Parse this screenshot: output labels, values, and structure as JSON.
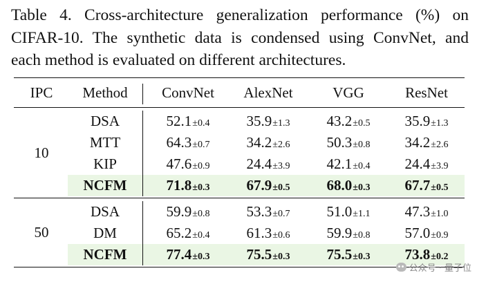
{
  "caption": {
    "lines": [
      "Table 4.  Cross-architecture generalization performance (%) on",
      "CIFAR-10.  The synthetic data is condensed using ConvNet, and",
      "each method is evaluated on different architectures."
    ]
  },
  "table": {
    "headers": [
      "IPC",
      "Method",
      "ConvNet",
      "AlexNet",
      "VGG",
      "ResNet"
    ],
    "groups": [
      {
        "ipc": "10",
        "rows": [
          {
            "method": "DSA",
            "highlight": false,
            "cells": [
              {
                "v": "52.1",
                "pm": "±0.4"
              },
              {
                "v": "35.9",
                "pm": "±1.3"
              },
              {
                "v": "43.2",
                "pm": "±0.5"
              },
              {
                "v": "35.9",
                "pm": "±1.3"
              }
            ]
          },
          {
            "method": "MTT",
            "highlight": false,
            "cells": [
              {
                "v": "64.3",
                "pm": "±0.7"
              },
              {
                "v": "34.2",
                "pm": "±2.6"
              },
              {
                "v": "50.3",
                "pm": "±0.8"
              },
              {
                "v": "34.2",
                "pm": "±2.6"
              }
            ]
          },
          {
            "method": "KIP",
            "highlight": false,
            "cells": [
              {
                "v": "47.6",
                "pm": "±0.9"
              },
              {
                "v": "24.4",
                "pm": "±3.9"
              },
              {
                "v": "42.1",
                "pm": "±0.4"
              },
              {
                "v": "24.4",
                "pm": "±3.9"
              }
            ]
          },
          {
            "method": "NCFM",
            "highlight": true,
            "cells": [
              {
                "v": "71.8",
                "pm": "±0.3"
              },
              {
                "v": "67.9",
                "pm": "±0.5"
              },
              {
                "v": "68.0",
                "pm": "±0.3"
              },
              {
                "v": "67.7",
                "pm": "±0.5"
              }
            ]
          }
        ]
      },
      {
        "ipc": "50",
        "rows": [
          {
            "method": "DSA",
            "highlight": false,
            "cells": [
              {
                "v": "59.9",
                "pm": "±0.8"
              },
              {
                "v": "53.3",
                "pm": "±0.7"
              },
              {
                "v": "51.0",
                "pm": "±1.1"
              },
              {
                "v": "47.3",
                "pm": "±1.0"
              }
            ]
          },
          {
            "method": "DM",
            "highlight": false,
            "cells": [
              {
                "v": "65.2",
                "pm": "±0.4"
              },
              {
                "v": "61.3",
                "pm": "±0.6"
              },
              {
                "v": "59.9",
                "pm": "±0.8"
              },
              {
                "v": "57.0",
                "pm": "±0.9"
              }
            ]
          },
          {
            "method": "NCFM",
            "highlight": true,
            "cells": [
              {
                "v": "77.4",
                "pm": "±0.3"
              },
              {
                "v": "75.5",
                "pm": "±0.3"
              },
              {
                "v": "75.5",
                "pm": "±0.3"
              },
              {
                "v": "73.8",
                "pm": "±0.2"
              }
            ]
          }
        ]
      }
    ]
  },
  "colors": {
    "highlight_bg": "#eaf6e4",
    "text": "#111111"
  },
  "watermark": {
    "text": "公众号 · 量子位",
    "icon": "wechat-icon"
  }
}
